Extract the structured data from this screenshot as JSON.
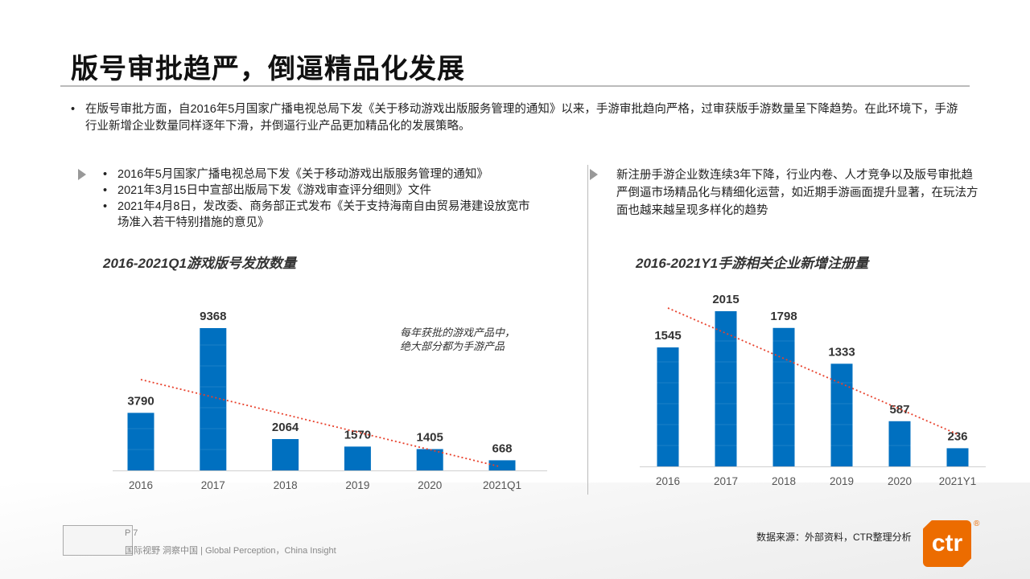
{
  "title": "版号审批趋严，倒逼精品化发展",
  "intro": "在版号审批方面，自2016年5月国家广播电视总局下发《关于移动游戏出版服务管理的通知》以来，手游审批趋向严格，过审获版手游数量呈下降趋势。在此环境下，手游行业新增企业数量同样逐年下滑，并倒逼行业产品更加精品化的发展策略。",
  "left_bullets": [
    "2016年5月国家广播电视总局下发《关于移动游戏出版服务管理的通知》",
    "2021年3月15日中宣部出版局下发《游戏审查评分细则》文件",
    "2021年4月8日，发改委、商务部正式发布《关于支持海南自由贸易港建设放宽市场准入若干特别措施的意见》"
  ],
  "right_text": "新注册手游企业数连续3年下降，行业内卷、人才竞争以及版号审批趋严倒逼市场精品化与精细化运营，如近期手游画面提升显著，在玩法方面也越来越呈现多样化的趋势",
  "note": "每年获批的游戏产品中，绝大部分都为手游产品",
  "chart_data": [
    {
      "type": "bar",
      "title": "2016-2021Q1游戏版号发放数量",
      "categories": [
        "2016",
        "2017",
        "2018",
        "2019",
        "2020",
        "2021Q1"
      ],
      "values": [
        3790,
        9368,
        2064,
        1570,
        1405,
        668
      ],
      "labels": [
        "3790",
        "9368",
        "2064",
        "1570",
        "1405",
        "668"
      ],
      "trendline": "dotted-linear-decreasing",
      "ylim": [
        0,
        9368
      ]
    },
    {
      "type": "bar",
      "title": "2016-2021Y1手游相关企业新增注册量",
      "categories": [
        "2016",
        "2017",
        "2018",
        "2019",
        "2020",
        "2021Y1"
      ],
      "values": [
        1545,
        2015,
        1798,
        1333,
        587,
        236
      ],
      "labels": [
        "1545",
        "2015",
        "1798",
        "1333",
        "587",
        "236"
      ],
      "trendline": "dotted-linear-decreasing",
      "ylim": [
        0,
        2015
      ]
    }
  ],
  "colors": {
    "bar": "#0070c0",
    "trend": "#e8412c",
    "brand": "#ec6c00"
  },
  "footer": {
    "page": "P 7",
    "slogan": "国际视野 洞察中国 |  Global Perception，China Insight",
    "source": "数据来源：外部资料，CTR整理分析",
    "logo": "ctr",
    "reg": "®"
  }
}
